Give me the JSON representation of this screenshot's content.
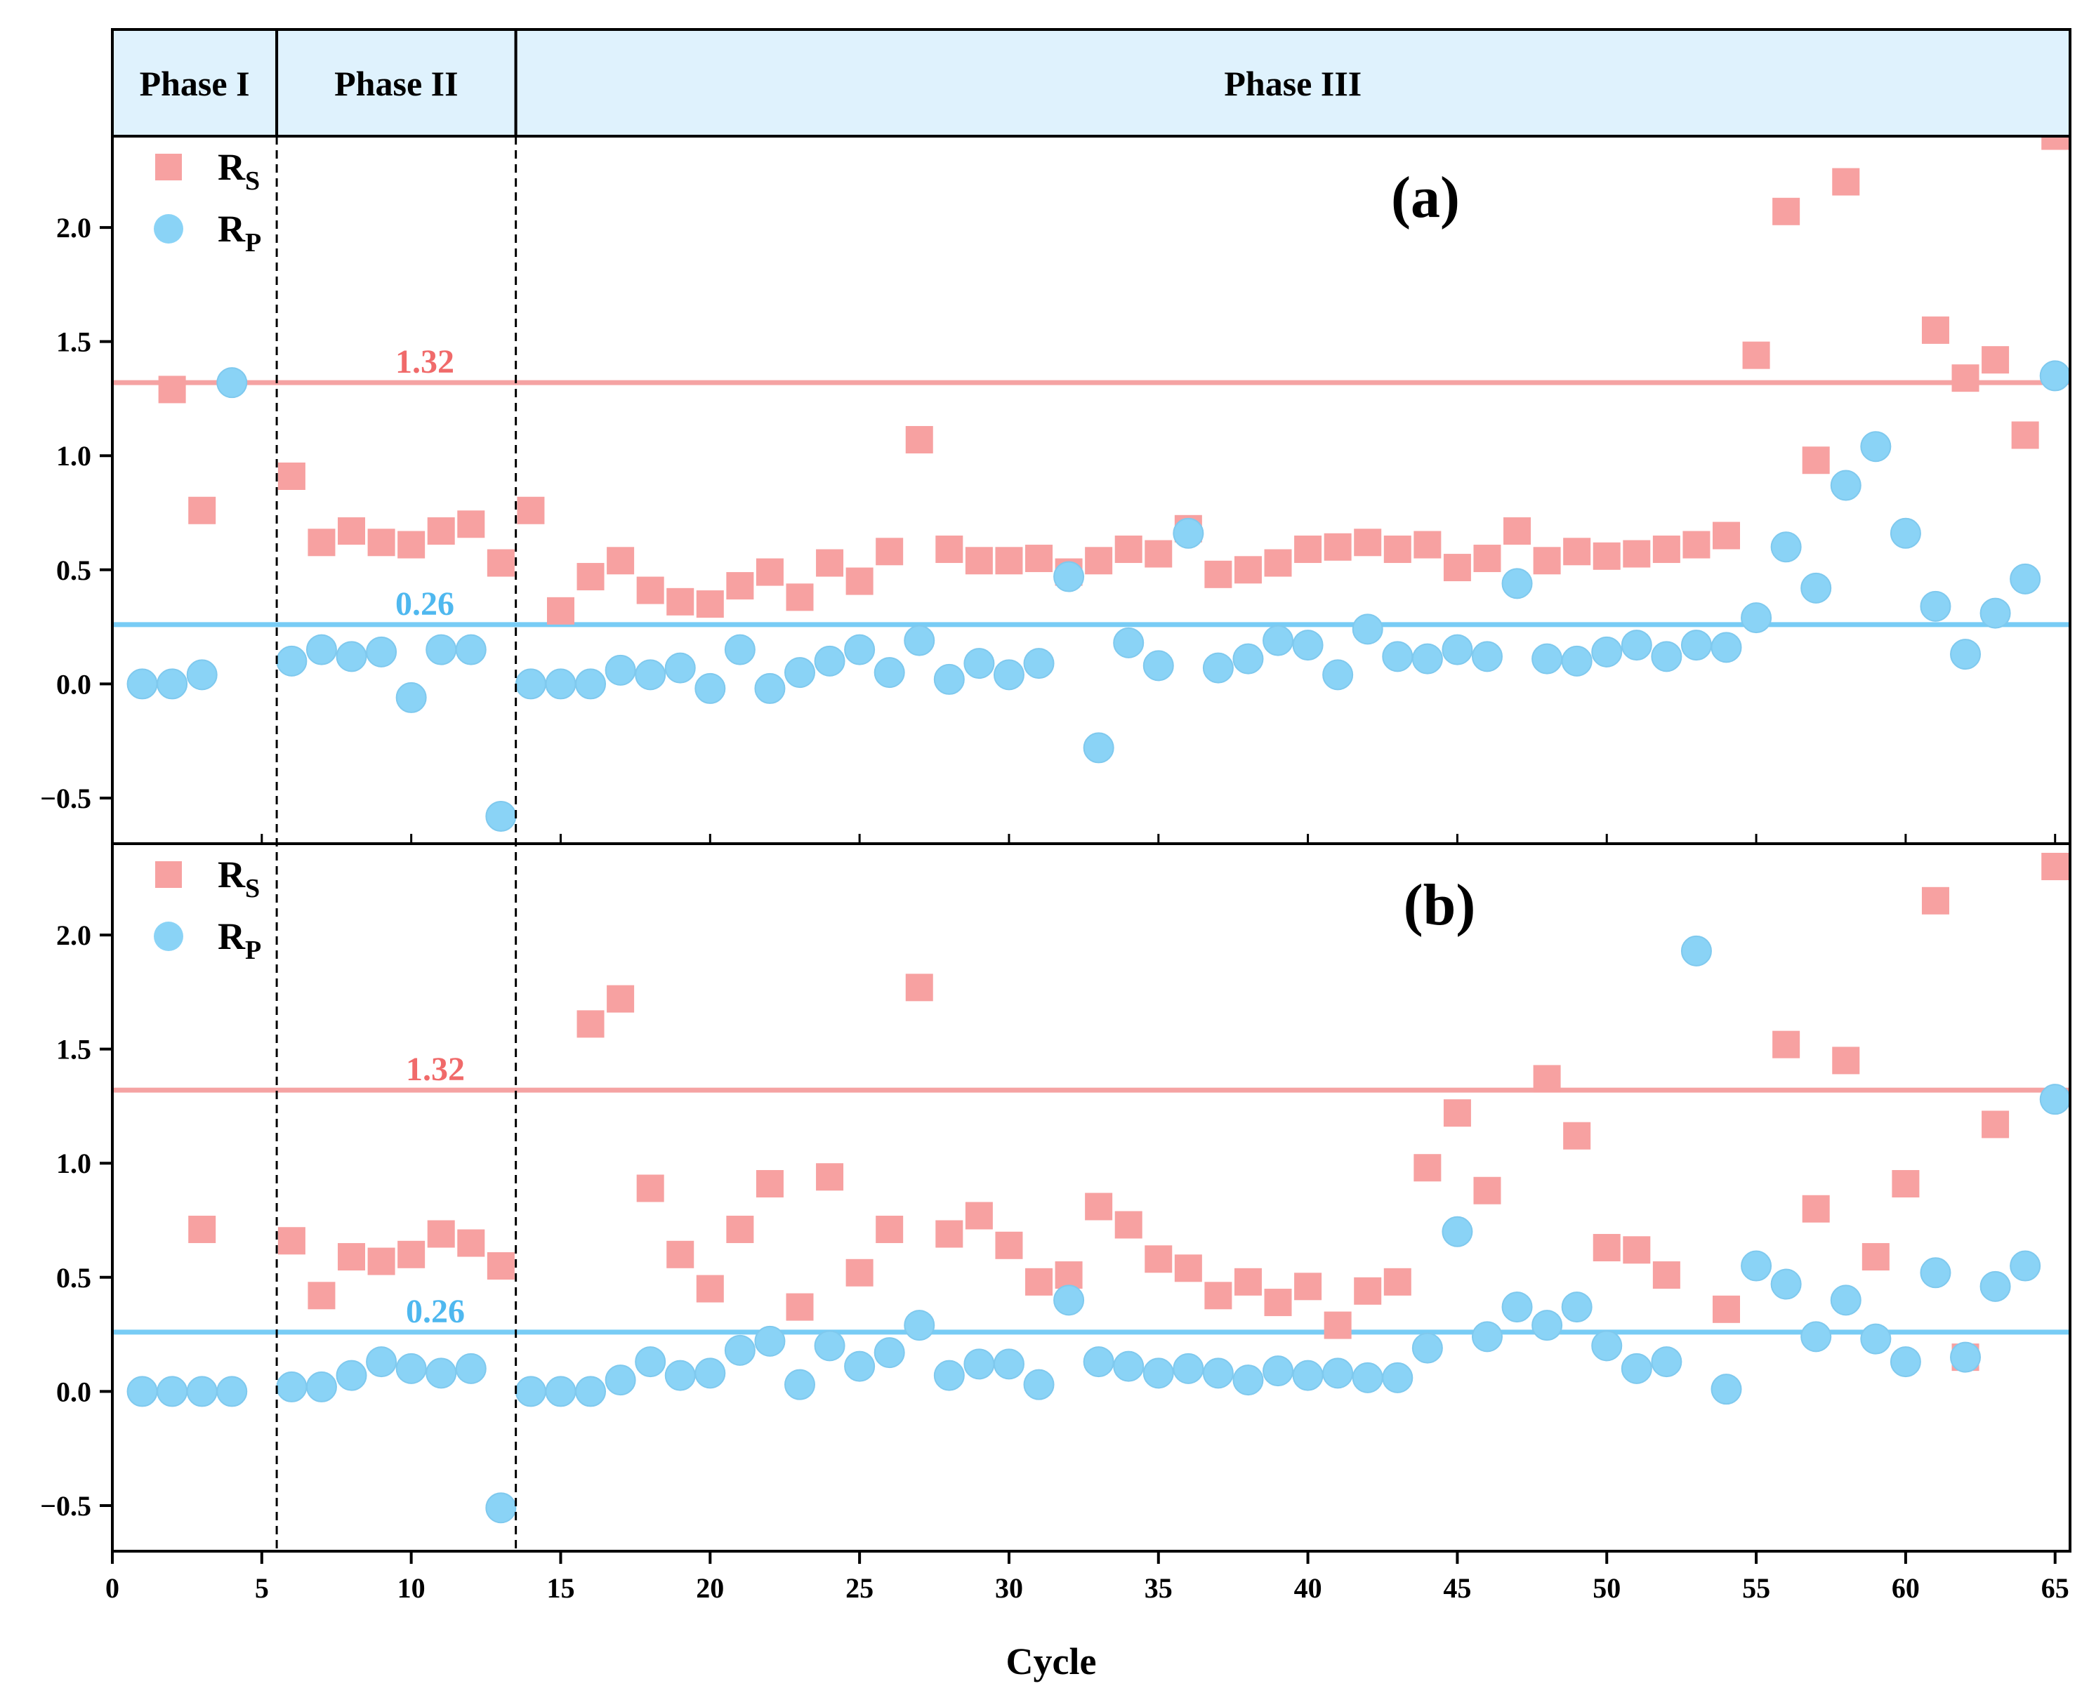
{
  "colors": {
    "rs": "#f7a1a1",
    "rp": "#8ad3f6",
    "rs_line": "#f5a3a3",
    "rp_line": "#78ccf5",
    "rs_text": "#f06a6a",
    "rp_text": "#4fb8ef",
    "header_fill": "#dff2fd"
  },
  "chart_data": {
    "type": "scatter",
    "xlabel": "Cycle",
    "xlim": [
      0,
      65.5
    ],
    "xticks": [
      0,
      5,
      10,
      15,
      20,
      25,
      30,
      35,
      40,
      45,
      50,
      55,
      60,
      65
    ],
    "ylim": [
      -0.7,
      2.4
    ],
    "yticks": [
      -0.5,
      0.0,
      0.5,
      1.0,
      1.5,
      2.0
    ],
    "ytick_labels": [
      "−0.5",
      "0.0",
      "0.5",
      "1.0",
      "1.5",
      "2.0"
    ],
    "phase_boundaries": [
      5.5,
      13.5
    ],
    "phases": [
      {
        "label": "Phase I",
        "from": 0,
        "to": 5.5
      },
      {
        "label": "Phase II",
        "from": 5.5,
        "to": 13.5
      },
      {
        "label": "Phase III",
        "from": 13.5,
        "to": 65.5
      }
    ],
    "thresholds": [
      {
        "label": "1.32",
        "value": 1.32,
        "series": "rs"
      },
      {
        "label": "0.26",
        "value": 0.26,
        "series": "rp"
      }
    ],
    "legend": {
      "rs_main": "R",
      "rs_sub": "S",
      "rp_main": "R",
      "rp_sub": "P",
      "position": "top-left"
    },
    "panels": [
      {
        "label": "(a)",
        "rs": [
          [
            2,
            1.29
          ],
          [
            3,
            0.76
          ],
          [
            6,
            0.91
          ],
          [
            7,
            0.62
          ],
          [
            8,
            0.67
          ],
          [
            9,
            0.62
          ],
          [
            10,
            0.61
          ],
          [
            11,
            0.67
          ],
          [
            12,
            0.7
          ],
          [
            13,
            0.53
          ],
          [
            14,
            0.76
          ],
          [
            15,
            0.32
          ],
          [
            16,
            0.47
          ],
          [
            17,
            0.54
          ],
          [
            18,
            0.41
          ],
          [
            19,
            0.36
          ],
          [
            20,
            0.35
          ],
          [
            21,
            0.43
          ],
          [
            22,
            0.49
          ],
          [
            23,
            0.38
          ],
          [
            24,
            0.53
          ],
          [
            25,
            0.45
          ],
          [
            26,
            0.58
          ],
          [
            27,
            1.07
          ],
          [
            28,
            0.59
          ],
          [
            29,
            0.54
          ],
          [
            30,
            0.54
          ],
          [
            31,
            0.55
          ],
          [
            32,
            0.49
          ],
          [
            33,
            0.54
          ],
          [
            34,
            0.59
          ],
          [
            35,
            0.57
          ],
          [
            36,
            0.68
          ],
          [
            37,
            0.48
          ],
          [
            38,
            0.5
          ],
          [
            39,
            0.53
          ],
          [
            40,
            0.59
          ],
          [
            41,
            0.6
          ],
          [
            42,
            0.62
          ],
          [
            43,
            0.59
          ],
          [
            44,
            0.61
          ],
          [
            45,
            0.51
          ],
          [
            46,
            0.55
          ],
          [
            47,
            0.67
          ],
          [
            48,
            0.54
          ],
          [
            49,
            0.58
          ],
          [
            50,
            0.56
          ],
          [
            51,
            0.57
          ],
          [
            52,
            0.59
          ],
          [
            53,
            0.61
          ],
          [
            54,
            0.65
          ],
          [
            55,
            1.44
          ],
          [
            56,
            2.07
          ],
          [
            57,
            0.98
          ],
          [
            58,
            2.2
          ],
          [
            61,
            1.55
          ],
          [
            62,
            1.34
          ],
          [
            63,
            1.42
          ],
          [
            64,
            1.09
          ],
          [
            65,
            2.4
          ]
        ],
        "rp": [
          [
            1,
            0.0
          ],
          [
            2,
            0.0
          ],
          [
            3,
            0.04
          ],
          [
            4,
            1.32
          ],
          [
            6,
            0.1
          ],
          [
            7,
            0.15
          ],
          [
            8,
            0.12
          ],
          [
            9,
            0.14
          ],
          [
            10,
            -0.06
          ],
          [
            11,
            0.15
          ],
          [
            12,
            0.15
          ],
          [
            13,
            -0.58
          ],
          [
            14,
            0.0
          ],
          [
            15,
            0.0
          ],
          [
            16,
            0.0
          ],
          [
            17,
            0.06
          ],
          [
            18,
            0.04
          ],
          [
            19,
            0.07
          ],
          [
            20,
            -0.02
          ],
          [
            21,
            0.15
          ],
          [
            22,
            -0.02
          ],
          [
            23,
            0.05
          ],
          [
            24,
            0.1
          ],
          [
            25,
            0.15
          ],
          [
            26,
            0.05
          ],
          [
            27,
            0.19
          ],
          [
            28,
            0.02
          ],
          [
            29,
            0.09
          ],
          [
            30,
            0.04
          ],
          [
            31,
            0.09
          ],
          [
            32,
            0.47
          ],
          [
            33,
            -0.28
          ],
          [
            34,
            0.18
          ],
          [
            35,
            0.08
          ],
          [
            36,
            0.66
          ],
          [
            37,
            0.07
          ],
          [
            38,
            0.11
          ],
          [
            39,
            0.19
          ],
          [
            40,
            0.17
          ],
          [
            41,
            0.04
          ],
          [
            42,
            0.24
          ],
          [
            43,
            0.12
          ],
          [
            44,
            0.11
          ],
          [
            45,
            0.15
          ],
          [
            46,
            0.12
          ],
          [
            47,
            0.44
          ],
          [
            48,
            0.11
          ],
          [
            49,
            0.1
          ],
          [
            50,
            0.14
          ],
          [
            51,
            0.17
          ],
          [
            52,
            0.12
          ],
          [
            53,
            0.17
          ],
          [
            54,
            0.16
          ],
          [
            55,
            0.29
          ],
          [
            56,
            0.6
          ],
          [
            57,
            0.42
          ],
          [
            58,
            0.87
          ],
          [
            59,
            1.04
          ],
          [
            60,
            0.66
          ],
          [
            61,
            0.34
          ],
          [
            62,
            0.13
          ],
          [
            63,
            0.31
          ],
          [
            64,
            0.46
          ],
          [
            65,
            1.35
          ]
        ]
      },
      {
        "label": "(b)",
        "rs": [
          [
            3,
            0.71
          ],
          [
            6,
            0.66
          ],
          [
            7,
            0.42
          ],
          [
            8,
            0.59
          ],
          [
            9,
            0.57
          ],
          [
            10,
            0.6
          ],
          [
            11,
            0.69
          ],
          [
            12,
            0.65
          ],
          [
            13,
            0.55
          ],
          [
            16,
            1.61
          ],
          [
            17,
            1.72
          ],
          [
            18,
            0.89
          ],
          [
            19,
            0.6
          ],
          [
            20,
            0.45
          ],
          [
            21,
            0.71
          ],
          [
            22,
            0.91
          ],
          [
            23,
            0.37
          ],
          [
            24,
            0.94
          ],
          [
            25,
            0.52
          ],
          [
            26,
            0.71
          ],
          [
            27,
            1.77
          ],
          [
            28,
            0.69
          ],
          [
            29,
            0.77
          ],
          [
            30,
            0.64
          ],
          [
            31,
            0.48
          ],
          [
            32,
            0.51
          ],
          [
            33,
            0.81
          ],
          [
            34,
            0.73
          ],
          [
            35,
            0.58
          ],
          [
            36,
            0.54
          ],
          [
            37,
            0.42
          ],
          [
            38,
            0.48
          ],
          [
            39,
            0.39
          ],
          [
            40,
            0.46
          ],
          [
            41,
            0.29
          ],
          [
            42,
            0.44
          ],
          [
            43,
            0.48
          ],
          [
            44,
            0.98
          ],
          [
            45,
            1.22
          ],
          [
            46,
            0.88
          ],
          [
            48,
            1.37
          ],
          [
            49,
            1.12
          ],
          [
            50,
            0.63
          ],
          [
            51,
            0.62
          ],
          [
            52,
            0.51
          ],
          [
            54,
            0.36
          ],
          [
            56,
            1.52
          ],
          [
            57,
            0.8
          ],
          [
            58,
            1.45
          ],
          [
            59,
            0.59
          ],
          [
            60,
            0.91
          ],
          [
            61,
            2.15
          ],
          [
            62,
            0.15
          ],
          [
            63,
            1.17
          ],
          [
            65,
            2.3
          ]
        ],
        "rp": [
          [
            1,
            0.0
          ],
          [
            2,
            0.0
          ],
          [
            3,
            0.0
          ],
          [
            4,
            0.0
          ],
          [
            6,
            0.02
          ],
          [
            7,
            0.02
          ],
          [
            8,
            0.07
          ],
          [
            9,
            0.13
          ],
          [
            10,
            0.1
          ],
          [
            11,
            0.08
          ],
          [
            12,
            0.1
          ],
          [
            13,
            -0.51
          ],
          [
            14,
            0.0
          ],
          [
            15,
            0.0
          ],
          [
            16,
            0.0
          ],
          [
            17,
            0.05
          ],
          [
            18,
            0.13
          ],
          [
            19,
            0.07
          ],
          [
            20,
            0.08
          ],
          [
            21,
            0.18
          ],
          [
            22,
            0.22
          ],
          [
            23,
            0.03
          ],
          [
            24,
            0.2
          ],
          [
            25,
            0.11
          ],
          [
            26,
            0.17
          ],
          [
            27,
            0.29
          ],
          [
            28,
            0.07
          ],
          [
            29,
            0.12
          ],
          [
            30,
            0.12
          ],
          [
            31,
            0.03
          ],
          [
            32,
            0.4
          ],
          [
            33,
            0.13
          ],
          [
            34,
            0.11
          ],
          [
            35,
            0.08
          ],
          [
            36,
            0.1
          ],
          [
            37,
            0.08
          ],
          [
            38,
            0.05
          ],
          [
            39,
            0.09
          ],
          [
            40,
            0.07
          ],
          [
            41,
            0.08
          ],
          [
            42,
            0.06
          ],
          [
            43,
            0.06
          ],
          [
            44,
            0.19
          ],
          [
            45,
            0.7
          ],
          [
            46,
            0.24
          ],
          [
            47,
            0.37
          ],
          [
            48,
            0.29
          ],
          [
            49,
            0.37
          ],
          [
            50,
            0.2
          ],
          [
            51,
            0.1
          ],
          [
            52,
            0.13
          ],
          [
            53,
            1.93
          ],
          [
            54,
            0.01
          ],
          [
            55,
            0.55
          ],
          [
            56,
            0.47
          ],
          [
            57,
            0.24
          ],
          [
            58,
            0.4
          ],
          [
            59,
            0.23
          ],
          [
            60,
            0.13
          ],
          [
            61,
            0.52
          ],
          [
            62,
            0.15
          ],
          [
            63,
            0.46
          ],
          [
            64,
            0.55
          ],
          [
            65,
            1.28
          ]
        ]
      }
    ]
  }
}
